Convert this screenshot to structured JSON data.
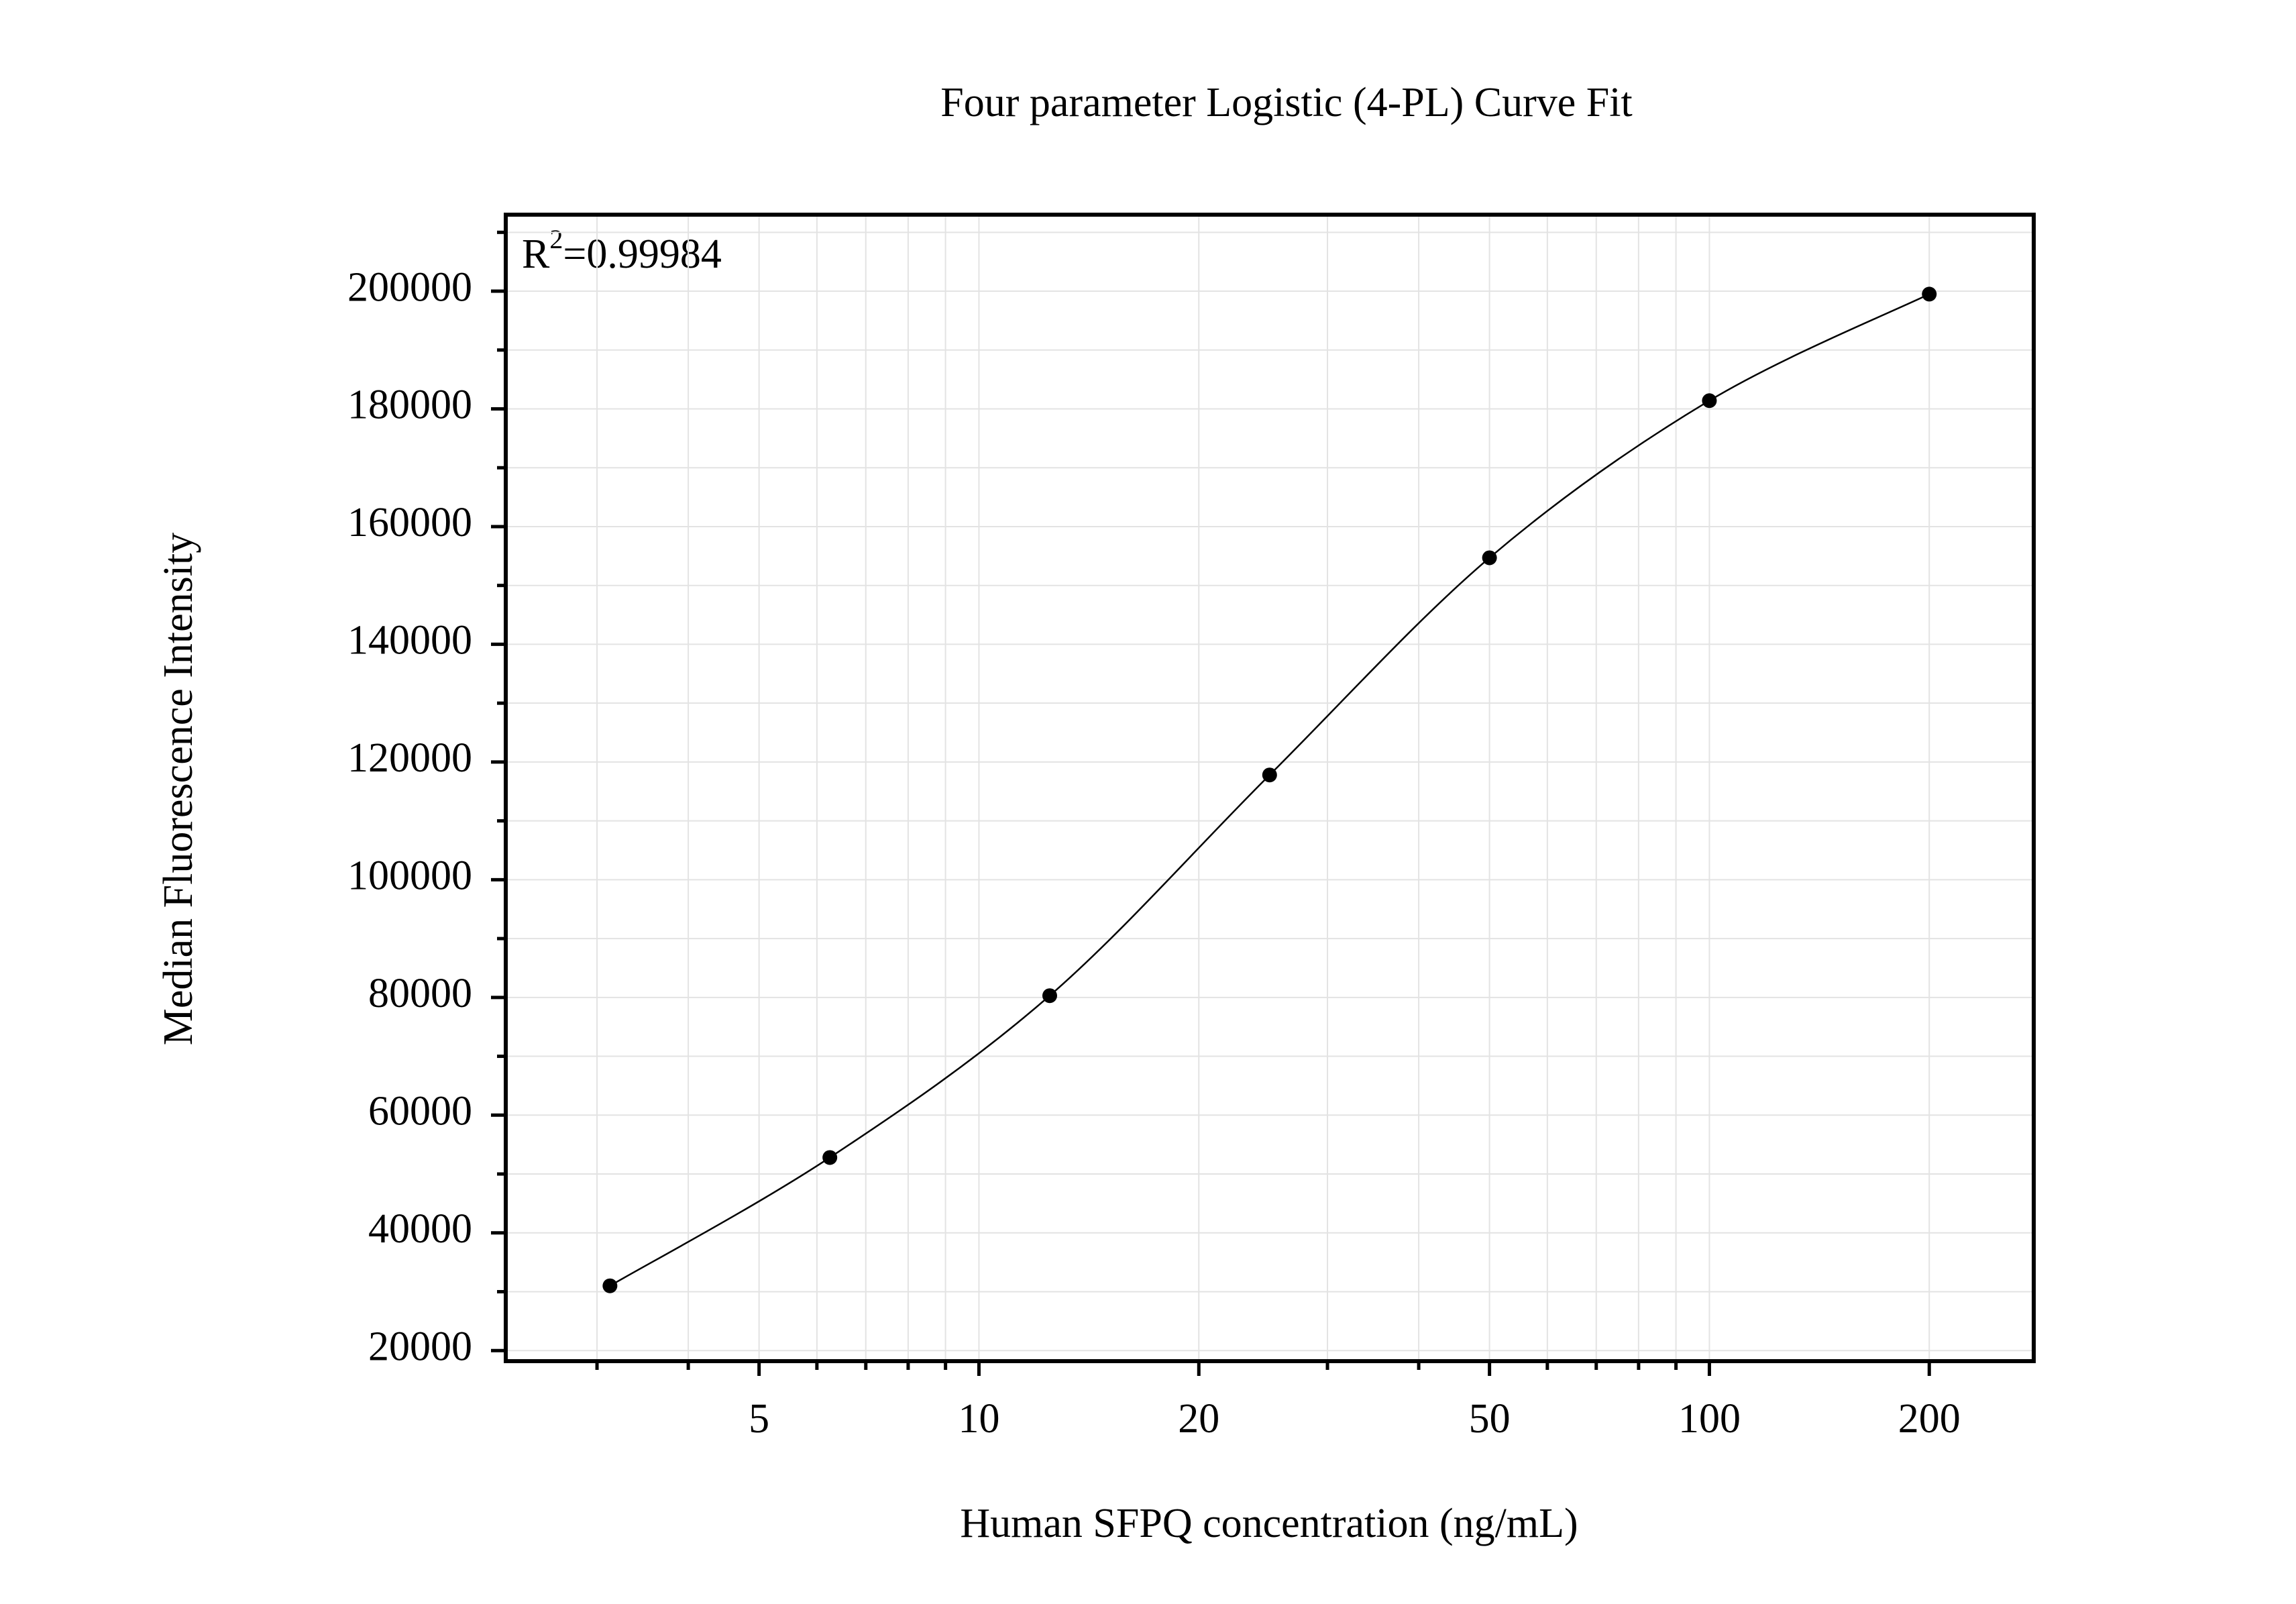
{
  "chart_data": {
    "type": "scatter",
    "title": "Four parameter Logistic (4-PL) Curve Fit",
    "x_label": "Human SFPQ concentration (ng/mL)",
    "y_label": "Median Fluorescence Intensity",
    "annotation": {
      "base": "R",
      "sup": "2",
      "rest": "=0.99984"
    },
    "x": [
      3.125,
      6.25,
      12.5,
      25,
      50,
      100,
      200
    ],
    "values": [
      31000,
      52800,
      80300,
      117800,
      154700,
      181400,
      199500
    ],
    "color": "#000000",
    "fit_line": true,
    "xscale": "log",
    "xlim": [
      2.25,
      278
    ],
    "ylim": [
      18200,
      213000
    ],
    "xticks": [
      5,
      10,
      20,
      50,
      100,
      200
    ],
    "xminorticks": [
      3,
      4,
      6,
      7,
      8,
      9,
      30,
      40,
      60,
      70,
      80,
      90
    ],
    "yticks": [
      20000,
      40000,
      60000,
      80000,
      100000,
      120000,
      140000,
      160000,
      180000,
      200000
    ],
    "yminorticks": [
      30000,
      50000,
      70000,
      90000,
      110000,
      130000,
      150000,
      170000,
      190000,
      210000
    ],
    "grid": true
  }
}
